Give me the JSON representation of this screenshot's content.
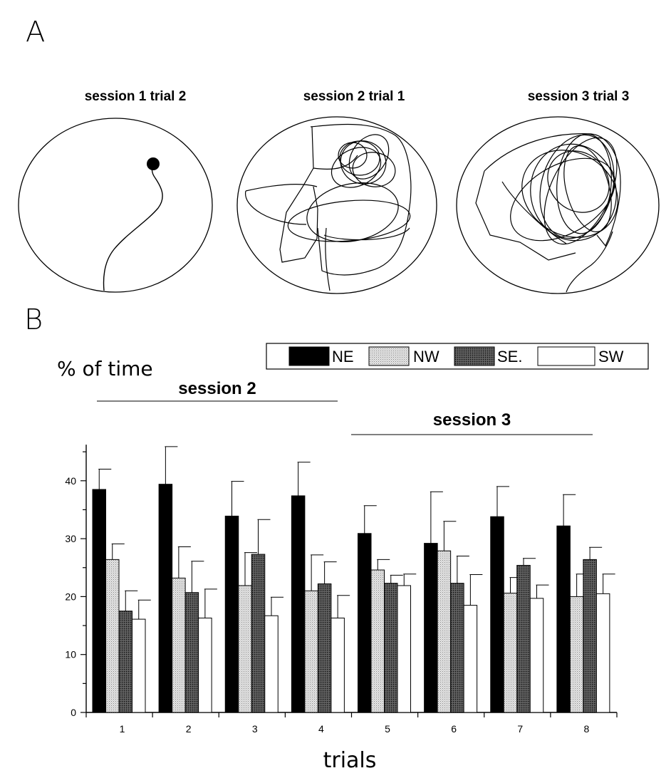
{
  "panel_a": {
    "letter": "A",
    "traces": [
      {
        "title": "session 1 trial 2"
      },
      {
        "title": "session 2  trial 1"
      },
      {
        "title": "session 3 trial 3"
      }
    ]
  },
  "panel_b": {
    "letter": "B"
  },
  "chart_data": {
    "type": "bar",
    "title": "",
    "ylabel": "% of time",
    "xlabel": "trials",
    "categories": [
      "1",
      "2",
      "3",
      "4",
      "5",
      "6",
      "7",
      "8"
    ],
    "ylim": [
      0,
      45
    ],
    "yticks": [
      0,
      10,
      20,
      30,
      40
    ],
    "grid": false,
    "legend_position": "top-right",
    "series": [
      {
        "name": "NE",
        "fill": "#000000",
        "values": [
          38.5,
          39.4,
          33.9,
          37.4,
          30.9,
          29.2,
          33.8,
          32.2
        ],
        "errors": [
          3.5,
          6.5,
          6.0,
          5.8,
          4.8,
          8.9,
          5.2,
          5.4
        ]
      },
      {
        "name": "NW",
        "fill": "#d9d9d9",
        "values": [
          26.4,
          23.2,
          21.9,
          21.0,
          24.6,
          27.9,
          20.6,
          20.0
        ],
        "errors": [
          2.7,
          5.4,
          5.7,
          6.2,
          1.8,
          5.1,
          2.7,
          3.9
        ]
      },
      {
        "name": "SE.",
        "fill": "#4a4a4a",
        "values": [
          17.5,
          20.7,
          27.3,
          22.2,
          22.3,
          22.3,
          25.4,
          26.4
        ],
        "errors": [
          3.5,
          5.4,
          6.0,
          3.8,
          1.4,
          4.7,
          1.2,
          2.1
        ]
      },
      {
        "name": "SW",
        "fill": "#ffffff",
        "values": [
          16.1,
          16.3,
          16.7,
          16.3,
          21.9,
          18.5,
          19.7,
          20.5
        ],
        "errors": [
          3.3,
          5.0,
          3.2,
          3.9,
          2.0,
          5.3,
          2.3,
          3.4
        ]
      }
    ],
    "annotations": [
      {
        "text": "session 2",
        "span": [
          "1",
          "4"
        ]
      },
      {
        "text": "session 3",
        "span": [
          "5",
          "8"
        ]
      }
    ]
  }
}
